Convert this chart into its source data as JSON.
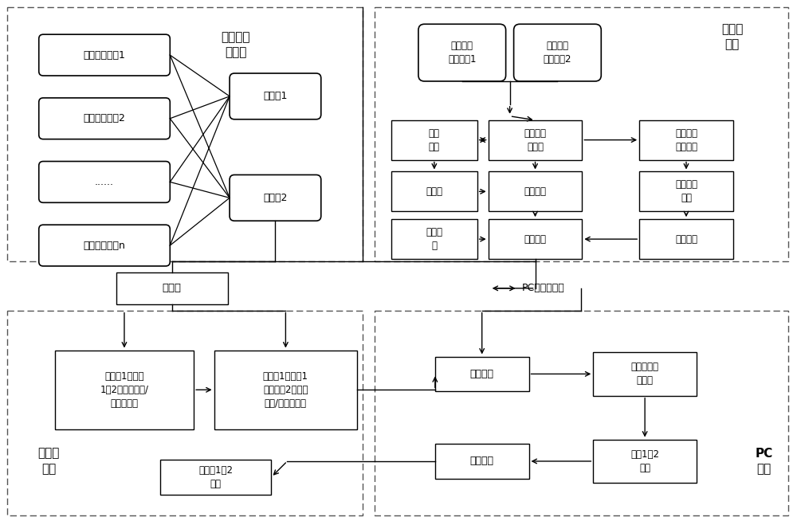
{
  "bg_color": "#ffffff",
  "figsize": [
    10.0,
    6.59
  ],
  "dpi": 100,
  "transmitters": [
    "伪卫星发射器1",
    "伪卫星发射器2",
    "......",
    "伪卫星发射器n"
  ],
  "receivers": [
    "接收器1",
    "接收器2"
  ],
  "ins_nodes": [
    "惯性组合\n导航系统1",
    "惯性组合\n导航系统2"
  ],
  "left_panel_label": "伪卫星及\n接收器",
  "right_panel_label": "惯性传\n感器",
  "bottom_left_label": "坐标系\n连接",
  "bottom_right_label": "PC\n终端",
  "node_jinwai": "井外\n上电",
  "node_huandao": "惯导固定\n自对准",
  "node_guanlong": "罐笼下放\n惯性测量",
  "node_shijian": "时间戳",
  "node_chushi": "初始姿态",
  "node_jiasude": "加速度角\n速度",
  "node_chushiwei": "初始位\n置",
  "node_jixie": "机械编排",
  "node_wucha": "误差补偿",
  "node_quanzhan": "全站仪",
  "node_pc": "PC端数据存储",
  "node_bl1": "井控点1和惯导\n1、2之间的角度/\n距离观测值",
  "node_bl2": "井控点1和惯导1\n及井控点2之间的\n角度/距离观测值",
  "node_zero": "零速修正",
  "node_kalman": "紧组合卡尔\n曼滤波",
  "node_measure": "测量平差",
  "node_ins12": "惯导1、2\n坐标",
  "node_well": "井控点1、2\n坐标"
}
